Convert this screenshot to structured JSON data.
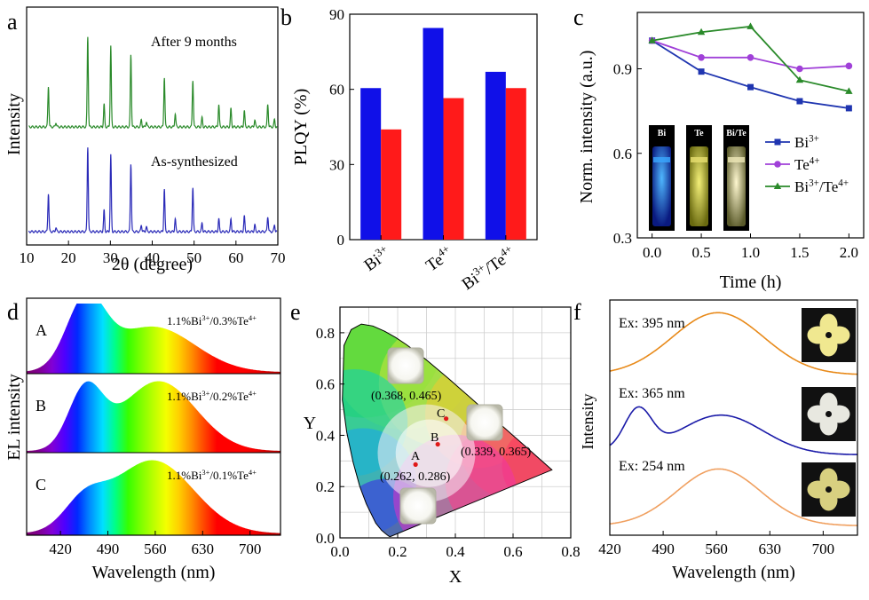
{
  "chart_data": [
    {
      "panel": "a",
      "type": "line",
      "xlabel": "2θ (degree)",
      "ylabel": "Intensity",
      "xlim": [
        10,
        70
      ],
      "xticks": [
        10,
        20,
        30,
        40,
        50,
        60,
        70
      ],
      "series": [
        {
          "name": "After 9 months",
          "color": "#2a8a2a",
          "peaks": [
            [
              15.2,
              0.45
            ],
            [
              17.0,
              0.05
            ],
            [
              24.6,
              1.0
            ],
            [
              28.5,
              0.25
            ],
            [
              30.1,
              0.9
            ],
            [
              34.9,
              0.8
            ],
            [
              37.4,
              0.08
            ],
            [
              38.6,
              0.06
            ],
            [
              42.9,
              0.55
            ],
            [
              45.5,
              0.15
            ],
            [
              49.7,
              0.52
            ],
            [
              51.9,
              0.1
            ],
            [
              55.9,
              0.25
            ],
            [
              58.8,
              0.2
            ],
            [
              62.0,
              0.18
            ],
            [
              64.5,
              0.08
            ],
            [
              67.6,
              0.25
            ],
            [
              69.2,
              0.08
            ]
          ]
        },
        {
          "name": "As-synthesized",
          "color": "#2a2ab8",
          "peaks": [
            [
              15.2,
              0.45
            ],
            [
              17.0,
              0.05
            ],
            [
              24.6,
              1.0
            ],
            [
              28.5,
              0.25
            ],
            [
              30.1,
              0.9
            ],
            [
              34.9,
              0.8
            ],
            [
              37.4,
              0.08
            ],
            [
              38.6,
              0.06
            ],
            [
              42.9,
              0.5
            ],
            [
              45.5,
              0.15
            ],
            [
              49.7,
              0.52
            ],
            [
              51.9,
              0.1
            ],
            [
              55.9,
              0.15
            ],
            [
              58.8,
              0.15
            ],
            [
              62.0,
              0.18
            ],
            [
              64.5,
              0.08
            ],
            [
              67.6,
              0.18
            ],
            [
              69.2,
              0.08
            ]
          ]
        }
      ]
    },
    {
      "panel": "b",
      "type": "bar",
      "ylabel": "PLQY (%)",
      "ylim": [
        0,
        90
      ],
      "yticks": [
        0,
        30,
        60,
        90
      ],
      "categories": [
        {
          "base": "Bi",
          "sup": "3+"
        },
        {
          "base": "Te",
          "sup": "4+"
        },
        {
          "base": "Bi",
          "sup": "3+",
          "base2": "/Te",
          "sup2": "4+"
        }
      ],
      "series": [
        {
          "color": "#1010e8",
          "values": [
            60.5,
            84.5,
            67
          ]
        },
        {
          "color": "#ff1a1a",
          "values": [
            44,
            56.5,
            60.5
          ]
        }
      ]
    },
    {
      "panel": "c",
      "type": "line",
      "xlabel": "Time (h)",
      "ylabel": "Norm. intensity (a.u.)",
      "xlim": [
        -0.15,
        2.15
      ],
      "ylim": [
        0.3,
        1.1
      ],
      "xticks": [
        0.0,
        0.5,
        1.0,
        1.5,
        2.0
      ],
      "yticks": [
        0.3,
        0.6,
        0.9
      ],
      "x": [
        0,
        0.5,
        1.0,
        1.5,
        2.0
      ],
      "legend": "right",
      "series": [
        {
          "name_base": "Bi",
          "name_sup": "3+",
          "color": "#1f35b0",
          "marker": "square",
          "values": [
            1.0,
            0.89,
            0.835,
            0.785,
            0.76
          ]
        },
        {
          "name_base": "Te",
          "name_sup": "4+",
          "color": "#a040d8",
          "marker": "circle",
          "values": [
            1.0,
            0.94,
            0.94,
            0.9,
            0.91
          ]
        },
        {
          "name_base": "Bi",
          "name_sup": "3+",
          "name_base2": "/Te",
          "name_sup2": "4+",
          "color": "#2a8a2a",
          "marker": "triangle",
          "values": [
            1.0,
            1.03,
            1.05,
            0.86,
            0.82
          ]
        }
      ],
      "inset_labels": [
        "Bi",
        "Te",
        "Bi/Te"
      ]
    },
    {
      "panel": "d",
      "type": "line",
      "xlabel": "Wavelength (nm)",
      "ylabel": "EL intensity",
      "xlim": [
        370,
        745
      ],
      "xticks": [
        420,
        490,
        560,
        630,
        700
      ],
      "series": [
        {
          "name": "A",
          "note": {
            "a": "1.1%Bi",
            "a_sup": "3+",
            "b": "/0.3%Te",
            "b_sup": "4+"
          },
          "peaks": [
            [
              457,
              0.95,
              28
            ],
            [
              556,
              0.65,
              62
            ]
          ]
        },
        {
          "name": "B",
          "note": {
            "a": "1.1%Bi",
            "a_sup": "3+",
            "b": "/0.2%Te",
            "b_sup": "4+"
          },
          "peaks": [
            [
              457,
              0.8,
              25
            ],
            [
              565,
              0.95,
              55
            ]
          ]
        },
        {
          "name": "C",
          "note": {
            "a": "1.1%Bi",
            "a_sup": "3+",
            "b": "/0.1%Te",
            "b_sup": "4+"
          },
          "peaks": [
            [
              455,
              0.35,
              30
            ],
            [
              556,
              0.95,
              60
            ]
          ]
        }
      ]
    },
    {
      "panel": "e",
      "type": "scatter",
      "xlabel": "X",
      "ylabel": "Y",
      "xlim": [
        0,
        0.8
      ],
      "ylim": [
        0,
        0.9
      ],
      "xticks": [
        0.0,
        0.2,
        0.4,
        0.6,
        0.8
      ],
      "yticks": [
        0.0,
        0.2,
        0.4,
        0.6,
        0.8
      ],
      "points": [
        {
          "name": "A",
          "x": 0.262,
          "y": 0.286,
          "label": "(0.262, 0.286)"
        },
        {
          "name": "B",
          "x": 0.339,
          "y": 0.365,
          "label": "(0.339, 0.365)"
        },
        {
          "name": "C",
          "x": 0.368,
          "y": 0.465,
          "label": "(0.368, 0.465)"
        }
      ]
    },
    {
      "panel": "f",
      "type": "line",
      "xlabel": "Wavelength (nm)",
      "ylabel": "Intensity",
      "xlim": [
        420,
        745
      ],
      "xticks": [
        420,
        490,
        560,
        630,
        700
      ],
      "series": [
        {
          "name": "Ex: 395 nm",
          "color": "#e88a1a",
          "peaks": [
            [
              562,
              1.0,
              60
            ]
          ]
        },
        {
          "name": "Ex: 365 nm",
          "color": "#1a1aa8",
          "peaks": [
            [
              457,
              0.75,
              18
            ],
            [
              566,
              0.72,
              55
            ]
          ]
        },
        {
          "name": "Ex: 254 nm",
          "color": "#f0a060",
          "peaks": [
            [
              563,
              1.0,
              55
            ]
          ]
        }
      ]
    }
  ],
  "panel_letters": [
    "a",
    "b",
    "c",
    "d",
    "e",
    "f"
  ]
}
